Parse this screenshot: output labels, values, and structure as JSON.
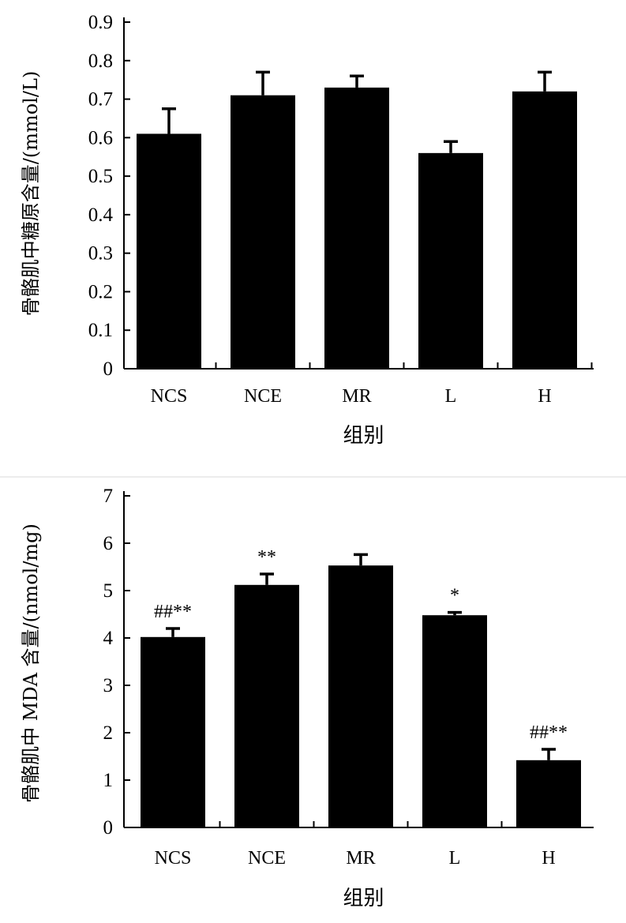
{
  "chart_data": [
    {
      "type": "bar",
      "categories": [
        "NCS",
        "NCE",
        "MR",
        "L",
        "H"
      ],
      "values": [
        0.61,
        0.71,
        0.73,
        0.56,
        0.72
      ],
      "errors": [
        0.065,
        0.06,
        0.03,
        0.03,
        0.05
      ],
      "annotations": [
        "",
        "",
        "",
        "",
        ""
      ],
      "xlabel": "组别",
      "ylabel": "骨骼肌中糖原含量/(mmol/L)",
      "ylim": [
        0,
        0.9
      ],
      "yticks": [
        "0",
        "0.1",
        "0.2",
        "0.3",
        "0.4",
        "0.5",
        "0.6",
        "0.7",
        "0.8",
        "0.9"
      ],
      "bar_color": "#000000",
      "grid": false
    },
    {
      "type": "bar",
      "categories": [
        "NCS",
        "NCE",
        "MR",
        "L",
        "H"
      ],
      "values": [
        4.02,
        5.12,
        5.53,
        4.48,
        1.42
      ],
      "errors": [
        0.18,
        0.23,
        0.23,
        0.06,
        0.23
      ],
      "annotations": [
        "##**",
        "**",
        "",
        "*",
        "##**"
      ],
      "xlabel": "组别",
      "ylabel": "骨骼肌中 MDA 含量/(nmol/mg)",
      "ylim": [
        0,
        7
      ],
      "yticks": [
        "0",
        "1",
        "2",
        "3",
        "4",
        "5",
        "6",
        "7"
      ],
      "bar_color": "#000000",
      "grid": false
    }
  ]
}
